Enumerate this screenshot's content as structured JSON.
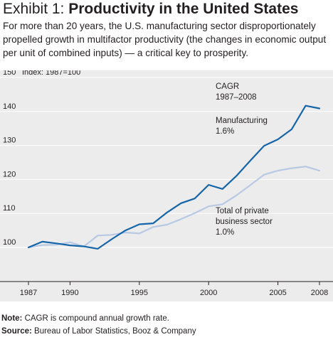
{
  "header": {
    "title_prefix": "Exhibit 1: ",
    "title_main": "Productivity in the United States",
    "subtitle": "For more than 20 years, the U.S. manufacturing sector disproportionately propelled growth in multifactor productivity (the changes in economic output per unit of combined inputs) — a critical key to prosperity."
  },
  "footer": {
    "note_label": "Note:",
    "note_text": " CAGR is compound annual growth rate.",
    "source_label": "Source:",
    "source_text": " Bureau of Labor Statistics, Booz & Company"
  },
  "colors": {
    "manufacturing": "#1565a8",
    "private_business": "#b7c9e3",
    "background": "#ececec",
    "grid": "#ffffff",
    "axis": "#231f20"
  },
  "chart_data": {
    "type": "line",
    "index_label": "Index: 1987=100",
    "xlim": [
      1987,
      2008
    ],
    "ylim": [
      100,
      150
    ],
    "yticks": [
      100,
      110,
      120,
      130,
      140,
      150
    ],
    "xticks": [
      1987,
      1990,
      1995,
      2000,
      2005,
      2008
    ],
    "grid": true,
    "annotation": [
      "CAGR",
      "1987–2008"
    ],
    "x": [
      1987,
      1988,
      1989,
      1990,
      1991,
      1992,
      1993,
      1994,
      1995,
      1996,
      1997,
      1998,
      1999,
      2000,
      2001,
      2002,
      2003,
      2004,
      2005,
      2006,
      2007,
      2008
    ],
    "series": [
      {
        "name": "Manufacturing",
        "label_lines": [
          "Manufacturing",
          "1.6%"
        ],
        "color": "#1565a8",
        "values": [
          100.0,
          101.7,
          101.2,
          100.6,
          100.3,
          99.6,
          102.4,
          105.0,
          106.8,
          107.1,
          110.3,
          113.0,
          114.4,
          118.4,
          117.2,
          121.0,
          125.5,
          129.9,
          131.8,
          134.8,
          141.7,
          140.9
        ]
      },
      {
        "name": "Total of private business sector",
        "label_lines": [
          "Total of private",
          "business sector",
          "1.0%"
        ],
        "color": "#b7c9e3",
        "values": [
          100.0,
          100.7,
          100.8,
          101.5,
          100.3,
          103.5,
          103.7,
          104.4,
          104.1,
          106.0,
          106.7,
          108.3,
          110.1,
          112.1,
          112.7,
          115.3,
          118.3,
          121.4,
          122.6,
          123.3,
          123.8,
          122.6
        ]
      }
    ]
  }
}
